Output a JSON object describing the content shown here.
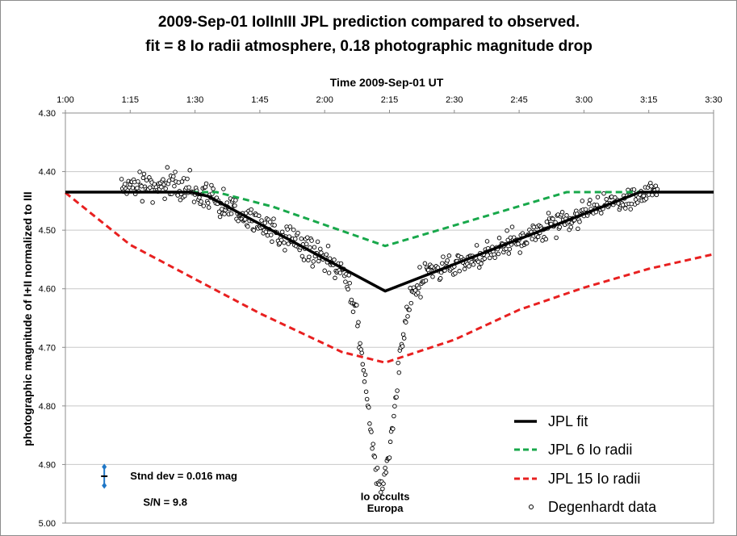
{
  "colors": {
    "background": "#ffffff",
    "grid": "#c8c8c8",
    "jpl_fit": "#000000",
    "jpl_6": "#18a84b",
    "jpl_15": "#e82020",
    "observed": "#000000",
    "error_bar": "#1f77c7"
  },
  "chart_data": {
    "type": "line",
    "title": "2009-Sep-01 IoIInIII JPL prediction compared to observed.",
    "subtitle": "fit = 8 Io radii atmosphere, 0.18 photographic magnitude drop",
    "xlabel": "Time  2009-Sep-01 UT",
    "ylabel": "photographic magnitude of  I+II normalized to III",
    "x_axis_position": "top",
    "y_inverted": true,
    "xlim": [
      "1:00",
      "3:30"
    ],
    "ylim": [
      4.3,
      5.0
    ],
    "x_ticks": [
      "1:00",
      "1:15",
      "1:30",
      "1:45",
      "2:00",
      "2:15",
      "2:30",
      "2:45",
      "3:00",
      "3:15",
      "3:30"
    ],
    "y_ticks": [
      "4.30",
      "4.40",
      "4.50",
      "4.60",
      "4.70",
      "4.80",
      "4.90",
      "5.00"
    ],
    "grid": "horizontal",
    "legend_position": "bottom-right",
    "series": [
      {
        "name": "JPL fit",
        "style": "solid",
        "x": [
          "1:00",
          "1:29",
          "1:33",
          "2:14",
          "3:13",
          "3:30"
        ],
        "y": [
          4.435,
          4.435,
          4.442,
          4.604,
          4.435,
          4.435
        ]
      },
      {
        "name": "JPL 6 Io radii",
        "style": "dashed",
        "x": [
          "1:00",
          "1:35",
          "1:48",
          "2:14",
          "2:56",
          "3:30"
        ],
        "y": [
          4.435,
          4.435,
          4.46,
          4.527,
          4.435,
          4.435
        ]
      },
      {
        "name": "JPL 15 Io radii",
        "style": "dashed",
        "x": [
          "1:00",
          "1:15",
          "1:45",
          "2:04",
          "2:14",
          "2:30",
          "2:45",
          "3:00",
          "3:15",
          "3:30"
        ],
        "y": [
          4.436,
          4.525,
          4.642,
          4.708,
          4.726,
          4.687,
          4.636,
          4.598,
          4.566,
          4.541
        ]
      },
      {
        "name": "Degenhardt data",
        "style": "markers",
        "x_range": [
          "1:13",
          "3:17"
        ],
        "min_point": {
          "x": "2:13",
          "y": 4.93
        }
      }
    ],
    "annotations": [
      {
        "text": "Io occults",
        "x": "2:14",
        "y": 4.955
      },
      {
        "text": "Europa",
        "x": "2:14",
        "y": 4.975
      },
      {
        "text": "Stnd dev = 0.016 mag",
        "x": "1:15",
        "y": 4.92
      },
      {
        "text": "S/N = 9.8",
        "x": "1:18",
        "y": 4.965
      }
    ],
    "error_bar": {
      "x": "1:09",
      "center": 4.92,
      "half_width": 0.016
    }
  }
}
